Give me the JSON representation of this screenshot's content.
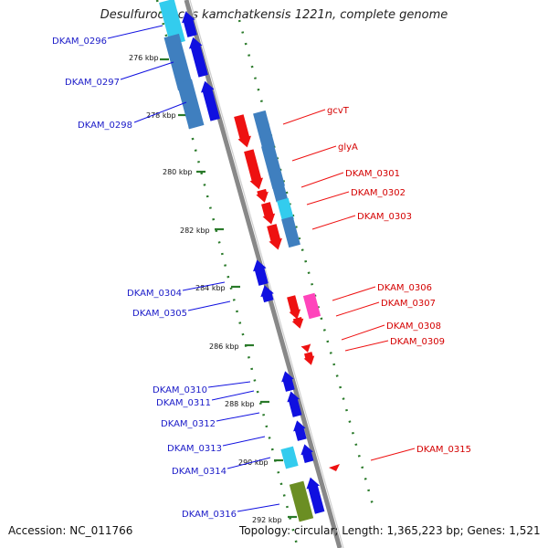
{
  "title": "Desulfurococcus kamchatkensis 1221n, complete genome",
  "footer": {
    "accession": "Accession: NC_011766",
    "summary": "Topology: circular; Length: 1,365,223 bp; Genes: 1,521"
  },
  "colors": {
    "reverse_strand_gene": "#1010e0",
    "forward_strand_gene": "#ee1111",
    "cds_blue": "#3f7fbf",
    "cds_cyan": "#33ccee",
    "cds_pink": "#ff44bb",
    "cds_olive": "#6b8e23",
    "tick_green": "#2a7a2a",
    "backbone": "#888888"
  },
  "ticks": [
    {
      "label": "276 kbp"
    },
    {
      "label": "278 kbp"
    },
    {
      "label": "280 kbp"
    },
    {
      "label": "282 kbp"
    },
    {
      "label": "284 kbp"
    },
    {
      "label": "286 kbp"
    },
    {
      "label": "288 kbp"
    },
    {
      "label": "290 kbp"
    },
    {
      "label": "292 kbp"
    }
  ],
  "reverse_genes": [
    {
      "label": "DKAM_0296"
    },
    {
      "label": "DKAM_0297"
    },
    {
      "label": "DKAM_0298"
    },
    {
      "label": "DKAM_0304"
    },
    {
      "label": "DKAM_0305"
    },
    {
      "label": "DKAM_0310"
    },
    {
      "label": "DKAM_0311"
    },
    {
      "label": "DKAM_0312"
    },
    {
      "label": "DKAM_0313"
    },
    {
      "label": "DKAM_0314"
    },
    {
      "label": "DKAM_0316"
    }
  ],
  "forward_genes": [
    {
      "label": "gcvT"
    },
    {
      "label": "glyA"
    },
    {
      "label": "DKAM_0301"
    },
    {
      "label": "DKAM_0302"
    },
    {
      "label": "DKAM_0303"
    },
    {
      "label": "DKAM_0306"
    },
    {
      "label": "DKAM_0307"
    },
    {
      "label": "DKAM_0308"
    },
    {
      "label": "DKAM_0309"
    },
    {
      "label": "DKAM_0315"
    }
  ]
}
